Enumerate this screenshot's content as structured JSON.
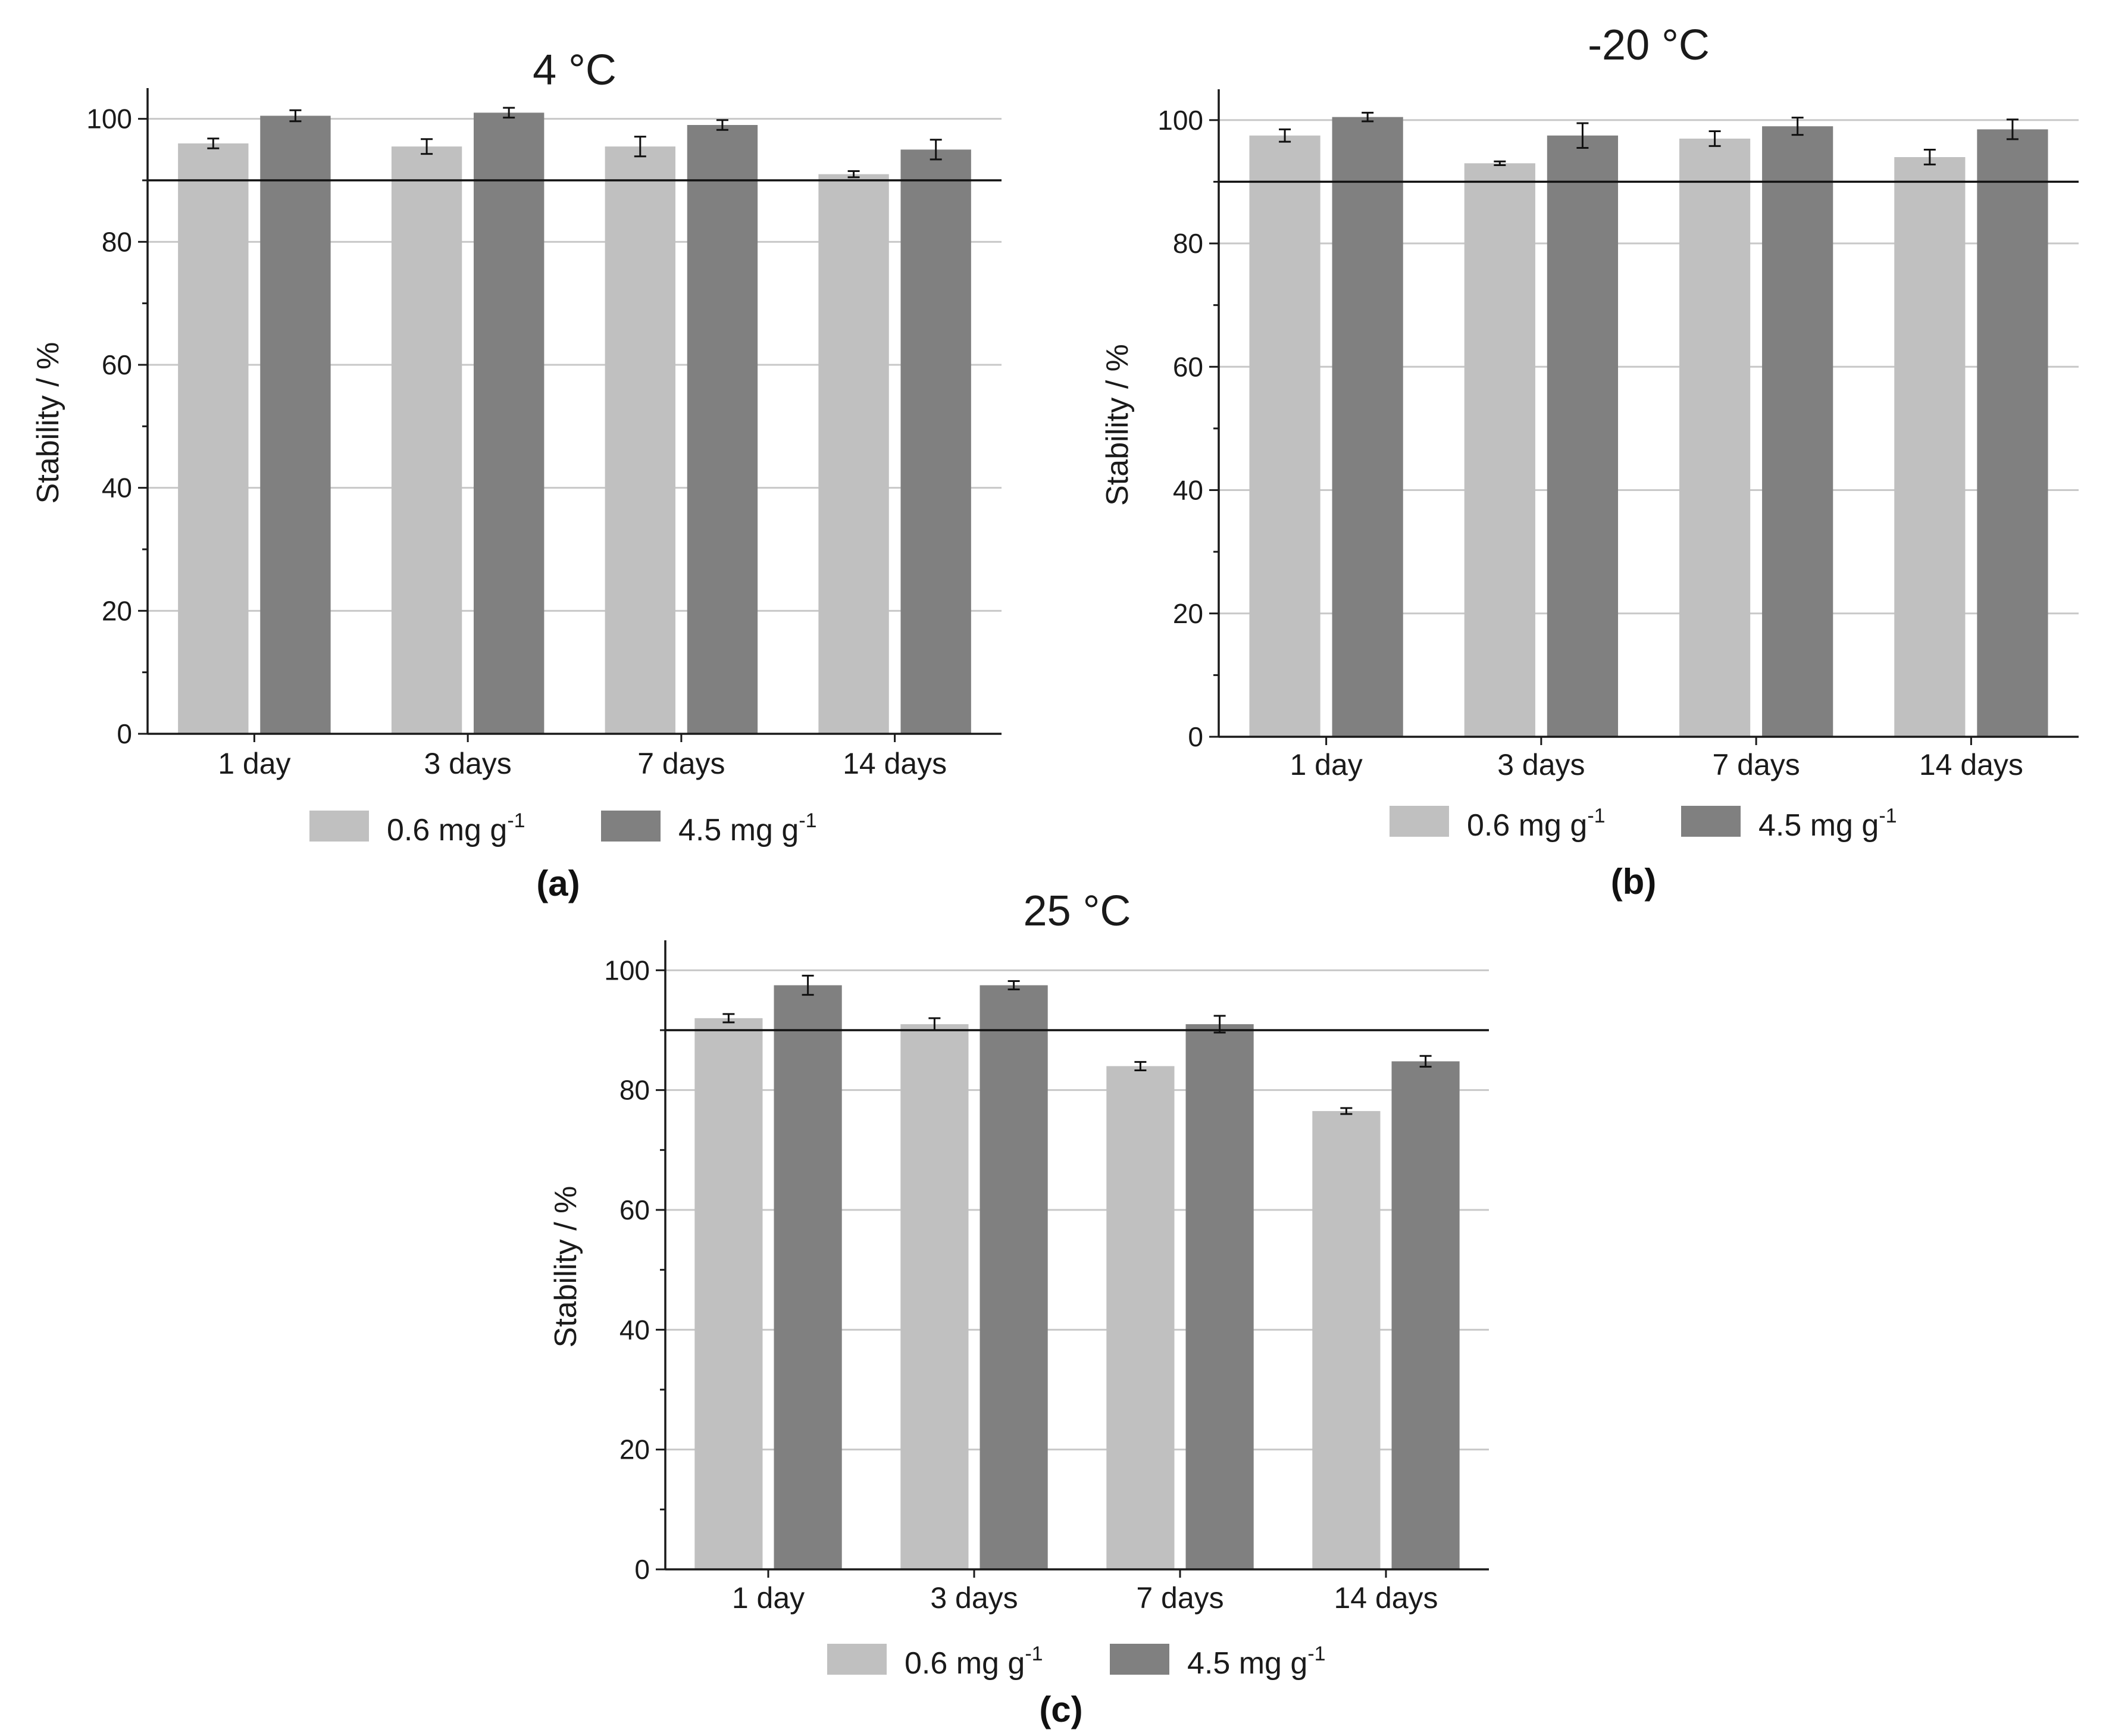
{
  "figure": {
    "background": "#ffffff",
    "axis_color": "#1a1a1a",
    "grid_color": "#c8c8c8"
  },
  "chart_data": [
    {
      "id": "a",
      "type": "bar",
      "title": "4 °C",
      "panel_label": "(a)",
      "xlabel": "",
      "ylabel": "Stability / %",
      "ylim": [
        0,
        105
      ],
      "yticks": [
        0,
        20,
        40,
        60,
        80,
        100
      ],
      "grid": true,
      "reference_line": 90,
      "categories": [
        "1 day",
        "3 days",
        "7 days",
        "14 days"
      ],
      "series": [
        {
          "name": "0.6 mg g",
          "sup": "-1",
          "color": "#c0c0c0",
          "values": [
            96,
            95.5,
            95.5,
            91
          ],
          "errors": [
            0.8,
            1.2,
            1.6,
            0.5
          ]
        },
        {
          "name": "4.5 mg g",
          "sup": "-1",
          "color": "#808080",
          "values": [
            100.5,
            101,
            99,
            95
          ],
          "errors": [
            0.9,
            0.8,
            0.8,
            1.6
          ]
        }
      ]
    },
    {
      "id": "b",
      "type": "bar",
      "title": "-20 °C",
      "panel_label": "(b)",
      "xlabel": "",
      "ylabel": "Stability / %",
      "ylim": [
        0,
        105
      ],
      "yticks": [
        0,
        20,
        40,
        60,
        80,
        100
      ],
      "grid": true,
      "reference_line": 90,
      "categories": [
        "1 day",
        "3 days",
        "7 days",
        "14 days"
      ],
      "series": [
        {
          "name": "0.6 mg g",
          "sup": "-1",
          "color": "#c0c0c0",
          "values": [
            97.5,
            93,
            97,
            94
          ],
          "errors": [
            1,
            0.3,
            1.2,
            1.2
          ]
        },
        {
          "name": "4.5 mg g",
          "sup": "-1",
          "color": "#808080",
          "values": [
            100.5,
            97.5,
            99,
            98.5
          ],
          "errors": [
            0.7,
            2,
            1.4,
            1.6
          ]
        }
      ]
    },
    {
      "id": "c",
      "type": "bar",
      "title": "25 °C",
      "panel_label": "(c)",
      "xlabel": "",
      "ylabel": "Stability / %",
      "ylim": [
        0,
        105
      ],
      "yticks": [
        0,
        20,
        40,
        60,
        80,
        100
      ],
      "grid": true,
      "reference_line": 90,
      "categories": [
        "1 day",
        "3 days",
        "7 days",
        "14 days"
      ],
      "series": [
        {
          "name": "0.6 mg g",
          "sup": "-1",
          "color": "#c0c0c0",
          "values": [
            92,
            91,
            84,
            76.5
          ],
          "errors": [
            0.7,
            1,
            0.7,
            0.5
          ]
        },
        {
          "name": "4.5 mg g",
          "sup": "-1",
          "color": "#808080",
          "values": [
            97.5,
            97.5,
            91,
            84.8
          ],
          "errors": [
            1.6,
            0.7,
            1.4,
            0.9
          ]
        }
      ]
    }
  ]
}
